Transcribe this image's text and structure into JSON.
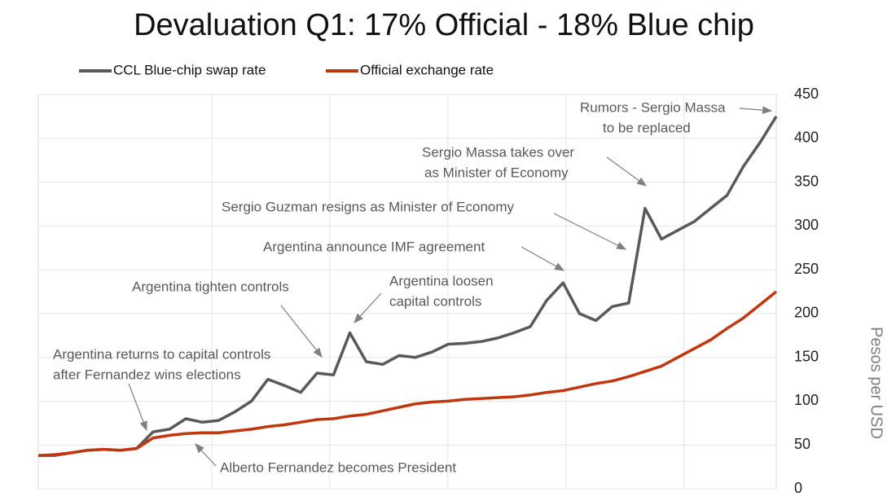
{
  "chart_data": {
    "type": "line",
    "title": "Devaluation Q1: 17% Official - 18% Blue chip",
    "y_label": "Pesos per USD",
    "categories": [
      null,
      null,
      null,
      null,
      null,
      null,
      null,
      null,
      null,
      null,
      null,
      null,
      null,
      null,
      null,
      null,
      null,
      null,
      null,
      null,
      null,
      null,
      null,
      null,
      null,
      null,
      null,
      null,
      null,
      null,
      null,
      null,
      null,
      null,
      null,
      null,
      null,
      null,
      null,
      null,
      null,
      null,
      null,
      null,
      null,
      null
    ],
    "series": [
      {
        "name": "CCL Blue-chip swap rate",
        "color": "#595959",
        "values": [
          38,
          38,
          41,
          44,
          45,
          44,
          46,
          65,
          68,
          80,
          76,
          78,
          88,
          100,
          125,
          118,
          110,
          132,
          130,
          178,
          145,
          142,
          152,
          150,
          156,
          165,
          166,
          168,
          172,
          178,
          185,
          215,
          235,
          200,
          192,
          208,
          212,
          320,
          285,
          295,
          305,
          320,
          335,
          368,
          395,
          425
        ]
      },
      {
        "name": "Official exchange rate",
        "color": "#c0370f",
        "values": [
          38,
          39,
          41,
          44,
          45,
          44,
          46,
          58,
          61,
          63,
          64,
          64,
          66,
          68,
          71,
          73,
          76,
          79,
          80,
          83,
          85,
          89,
          93,
          97,
          99,
          100,
          102,
          103,
          104,
          105,
          107,
          110,
          112,
          116,
          120,
          123,
          128,
          134,
          140,
          150,
          160,
          170,
          183,
          195,
          210,
          225
        ]
      }
    ],
    "ylim": [
      0,
      450
    ],
    "yticks": [
      0,
      50,
      100,
      150,
      200,
      250,
      300,
      350,
      400,
      450
    ],
    "grid": true,
    "y_axis_side": "right",
    "annotations": [
      "Rumors - Sergio Massa",
      "to be replaced",
      "Sergio Massa takes over",
      "as Minister of Economy",
      "Sergio Guzman resigns as Minister of Economy",
      "Argentina announce IMF agreement",
      "Argentina tighten controls",
      "Argentina loosen",
      "capital controls",
      "Argentina returns to capital controls",
      "after Fernandez wins elections",
      "Alberto Fernandez becomes President"
    ]
  }
}
